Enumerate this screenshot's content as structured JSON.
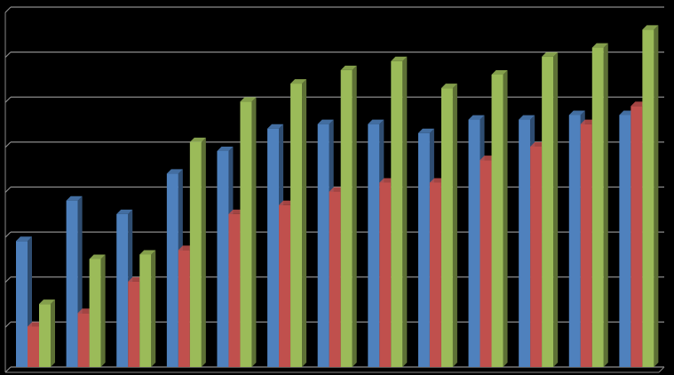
{
  "chart_data": {
    "type": "bar3d",
    "categories": [
      null,
      null,
      null,
      null,
      null,
      null,
      null,
      null,
      null,
      null,
      null,
      null,
      null
    ],
    "series": [
      {
        "color": "#4f81bd",
        "values": [
          2.8,
          3.7,
          3.4,
          4.3,
          4.8,
          5.3,
          5.4,
          5.4,
          5.2,
          5.5,
          5.5,
          5.6,
          5.6
        ]
      },
      {
        "color": "#c0504d",
        "values": [
          0.9,
          1.2,
          1.9,
          2.6,
          3.4,
          3.6,
          3.9,
          4.1,
          4.1,
          4.6,
          4.9,
          5.4,
          5.8
        ]
      },
      {
        "color": "#9bbb59",
        "values": [
          1.4,
          2.4,
          2.5,
          5.0,
          5.9,
          6.3,
          6.6,
          6.8,
          6.2,
          6.5,
          6.9,
          7.1,
          7.5
        ]
      }
    ],
    "ylim": [
      0,
      8
    ],
    "yticks": [
      0,
      1,
      2,
      3,
      4,
      5,
      6,
      7,
      8
    ],
    "grid": true
  }
}
